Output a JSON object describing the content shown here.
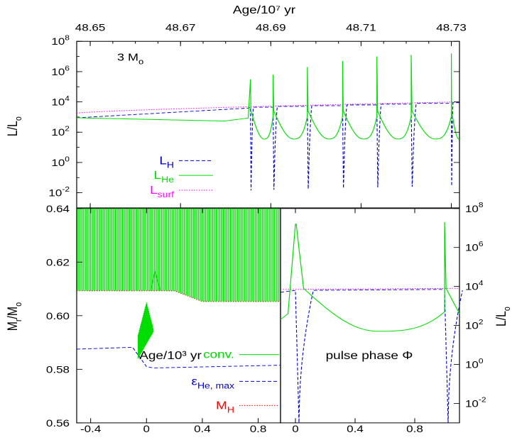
{
  "chart_data": [
    {
      "id": "top",
      "type": "line",
      "annotation": {
        "text": "3 M",
        "sub": "o"
      },
      "xlabel_top": "Age/10⁷ yr",
      "ylabel": {
        "main": "L/L",
        "sub": "o"
      },
      "x_ticks": [
        "48.65",
        "48.67",
        "48.69",
        "48.71",
        "48.73"
      ],
      "y_ticks": [
        {
          "base": "10",
          "exp": "8"
        },
        {
          "base": "10",
          "exp": "6"
        },
        {
          "base": "10",
          "exp": "4"
        },
        {
          "base": "10",
          "exp": "2"
        },
        {
          "base": "10",
          "exp": "0"
        },
        {
          "base": "10",
          "exp": "-2"
        }
      ],
      "xlim": [
        48.647,
        48.7318
      ],
      "ylim_log10": [
        -3,
        8
      ],
      "pulse_ages": [
        48.6855,
        48.6905,
        48.6981,
        48.7059,
        48.7135,
        48.7211,
        48.73
      ],
      "series": [
        {
          "name": "L",
          "sub": "H",
          "color": "#0000cc",
          "style": "dashed",
          "log10_values": [
            2.9,
            3.1,
            3.3,
            3.55,
            -3,
            3.6,
            -3,
            3.75,
            -3,
            3.8,
            -3,
            3.85,
            -3,
            3.9,
            -3
          ]
        },
        {
          "name": "L",
          "sub": "He",
          "color": "#00dd00",
          "style": "solid",
          "log10_values": [
            2.95,
            2.8,
            2.9,
            5.5,
            1.4,
            5.8,
            1.6,
            6.3,
            1.6,
            6.7,
            1.65,
            7.0,
            1.6,
            7.1,
            1.6,
            7.2,
            1.6
          ]
        },
        {
          "name": "L",
          "sub": "surf",
          "color": "#ff00ff",
          "style": "dotted",
          "log10_values": [
            3.2,
            3.4,
            3.6,
            3.8,
            3.9,
            4.0
          ]
        }
      ]
    },
    {
      "id": "bottom-left",
      "type": "line",
      "xlabel": "Age/10³ yr",
      "ylabel": {
        "main": "M",
        "sub": "r",
        "tail": "/M",
        "sub2": "o"
      },
      "x_ticks": [
        "-0.4",
        "0",
        "0.4",
        "0.8"
      ],
      "y_ticks": [
        "0.64",
        "0.62",
        "0.60",
        "0.58",
        "0.56"
      ],
      "xlim": [
        -0.5,
        0.96
      ],
      "ylim": [
        0.56,
        0.64
      ],
      "series": [
        {
          "name": "conv.",
          "color": "#00dd00",
          "style": "solid",
          "fill": true
        },
        {
          "name": "ε",
          "sub": "He, max",
          "color": "#0000cc",
          "style": "dashed",
          "x": [
            -0.5,
            -0.1,
            0.0,
            0.05,
            0.96
          ],
          "y": [
            0.5875,
            0.5882,
            0.581,
            0.5805,
            0.5815
          ]
        },
        {
          "name": "M",
          "sub": "H",
          "color": "#ff0000",
          "style": "dotted",
          "x": [
            -0.5,
            0.2,
            0.4,
            0.96
          ],
          "y": [
            0.6093,
            0.6093,
            0.6053,
            0.6053
          ]
        }
      ]
    },
    {
      "id": "bottom-right",
      "type": "line",
      "xlabel": "pulse phase Φ",
      "ylabel": {
        "main": "L/L",
        "sub": "o"
      },
      "x_ticks": [
        "0",
        "0.4",
        "0.8"
      ],
      "y_ticks": [
        {
          "base": "10",
          "exp": "8"
        },
        {
          "base": "10",
          "exp": "6"
        },
        {
          "base": "10",
          "exp": "4"
        },
        {
          "base": "10",
          "exp": "2"
        },
        {
          "base": "10",
          "exp": "0"
        },
        {
          "base": "10",
          "exp": "-2"
        }
      ],
      "xlim": [
        -0.1,
        1.1
      ],
      "ylim_log10": [
        -3,
        8
      ]
    }
  ]
}
